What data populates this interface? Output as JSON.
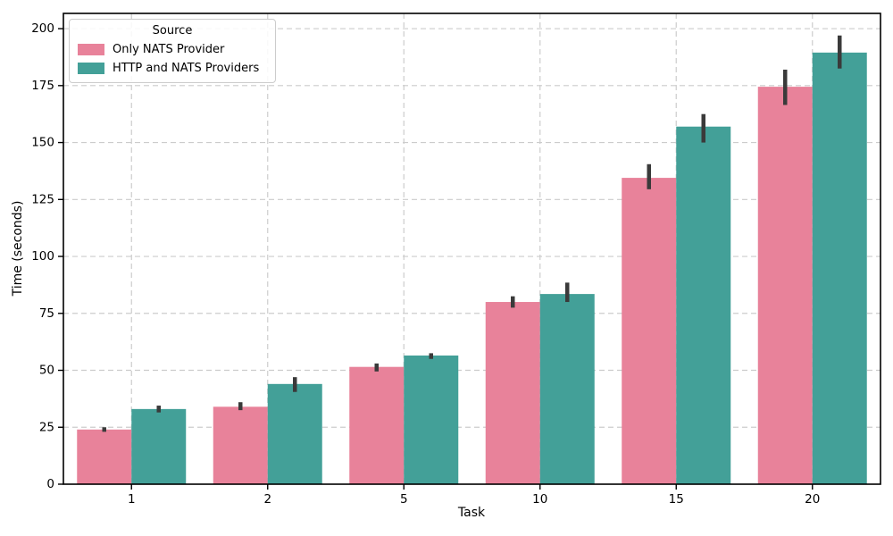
{
  "figure": {
    "background": "#ffffff"
  },
  "chart_data": {
    "type": "bar",
    "title": "",
    "xlabel": "Task",
    "ylabel": "Time (seconds)",
    "categories": [
      "1",
      "2",
      "5",
      "10",
      "15",
      "20"
    ],
    "series": [
      {
        "name": "Only NATS Provider",
        "color": "#e8829a",
        "values": [
          24,
          34,
          51.5,
          80,
          134.5,
          174.5
        ],
        "err_low": [
          23,
          32.5,
          49.5,
          77.5,
          129.5,
          166.5
        ],
        "err_high": [
          25,
          36,
          53,
          82.5,
          140.5,
          182
        ]
      },
      {
        "name": "HTTP and NATS Providers",
        "color": "#43a098",
        "values": [
          33,
          44,
          56.5,
          83.5,
          157,
          189.5
        ],
        "err_low": [
          31.5,
          40.5,
          55,
          80,
          150,
          182.5
        ],
        "err_high": [
          34.5,
          47,
          57.5,
          88.5,
          162.5,
          197
        ]
      }
    ],
    "yticks": [
      0,
      25,
      50,
      75,
      100,
      125,
      150,
      175,
      200
    ],
    "ylim": [
      0,
      206.7
    ],
    "grid": true,
    "grid_style": "dashed",
    "legend": {
      "title": "Source",
      "position": "upper-left"
    },
    "colors": {
      "grid": "#cccccc",
      "spine": "#000000",
      "error_bar": "#3a3a3a",
      "text": "#000000"
    }
  }
}
